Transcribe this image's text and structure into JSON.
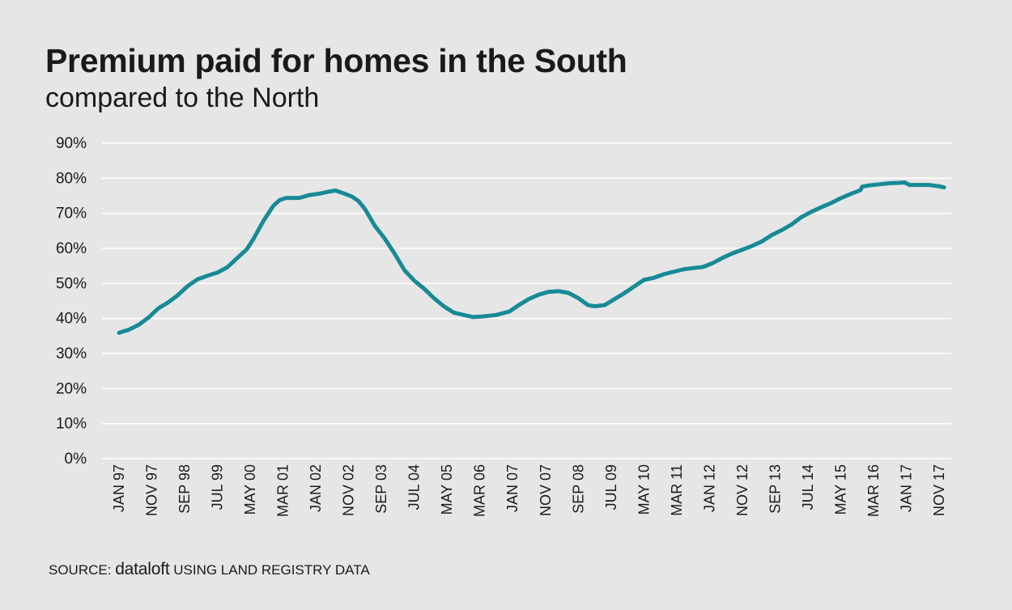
{
  "header": {
    "title": "Premium paid for homes in the South",
    "subtitle": "compared to the North"
  },
  "source": {
    "prefix": "SOURCE:",
    "brand": "dataloft",
    "suffix": "USING LAND REGISTRY DATA"
  },
  "colors": {
    "line": "#178a96",
    "grid": "#ffffff",
    "background": "#e6e6e6",
    "text": "#1a1a1a"
  },
  "chart_data": {
    "type": "line",
    "title": "Premium paid for homes in the South",
    "subtitle": "compared to the North",
    "xlabel": "",
    "ylabel": "",
    "ylim": [
      0,
      90
    ],
    "y_ticks": [
      0,
      10,
      20,
      30,
      40,
      50,
      60,
      70,
      80,
      90
    ],
    "y_tick_labels": [
      "0%",
      "10%",
      "20%",
      "30%",
      "40%",
      "50%",
      "60%",
      "70%",
      "80%",
      "90%"
    ],
    "grid": true,
    "legend": "none",
    "x_tick_labels": [
      "JAN 97",
      "NOV 97",
      "SEP 98",
      "JUL 99",
      "MAY 00",
      "MAR 01",
      "JAN 02",
      "NOV 02",
      "SEP 03",
      "JUL 04",
      "MAY 05",
      "MAR 06",
      "JAN 07",
      "NOV 07",
      "SEP 08",
      "JUL 09",
      "MAY 10",
      "MAR 11",
      "JAN 12",
      "NOV 12",
      "SEP 13",
      "JUL 14",
      "MAY 15",
      "MAR 16",
      "JAN 17",
      "NOV 17"
    ],
    "series": [
      {
        "values": [
          [
            1997.0,
            35.9
          ],
          [
            1997.3,
            36.8
          ],
          [
            1997.6,
            38.2
          ],
          [
            1997.9,
            40.3
          ],
          [
            1998.2,
            42.9
          ],
          [
            1998.5,
            44.6
          ],
          [
            1998.8,
            46.7
          ],
          [
            1999.1,
            49.3
          ],
          [
            1999.4,
            51.2
          ],
          [
            1999.7,
            52.2
          ],
          [
            2000.0,
            53.1
          ],
          [
            2000.3,
            54.6
          ],
          [
            2000.6,
            57.2
          ],
          [
            2000.9,
            59.8
          ],
          [
            2001.1,
            62.7
          ],
          [
            2001.4,
            67.8
          ],
          [
            2001.7,
            72.1
          ],
          [
            2001.9,
            73.8
          ],
          [
            2002.1,
            74.4
          ],
          [
            2002.5,
            74.4
          ],
          [
            2002.8,
            75.2
          ],
          [
            2003.1,
            75.6
          ],
          [
            2003.4,
            76.2
          ],
          [
            2003.6,
            76.5
          ],
          [
            2003.9,
            75.5
          ],
          [
            2004.1,
            74.8
          ],
          [
            2004.3,
            73.5
          ],
          [
            2004.5,
            71.2
          ],
          [
            2004.8,
            66.4
          ],
          [
            2005.1,
            62.8
          ],
          [
            2005.4,
            58.5
          ],
          [
            2005.7,
            53.8
          ],
          [
            2006.0,
            50.8
          ],
          [
            2006.3,
            48.5
          ],
          [
            2006.6,
            45.8
          ],
          [
            2006.9,
            43.5
          ],
          [
            2007.2,
            41.7
          ],
          [
            2007.5,
            41.0
          ],
          [
            2007.8,
            40.4
          ],
          [
            2008.1,
            40.6
          ],
          [
            2008.5,
            41.0
          ],
          [
            2008.9,
            42.0
          ],
          [
            2009.2,
            43.9
          ],
          [
            2009.5,
            45.6
          ],
          [
            2009.8,
            46.8
          ],
          [
            2010.1,
            47.6
          ],
          [
            2010.4,
            47.8
          ],
          [
            2010.7,
            47.3
          ],
          [
            2011.0,
            45.8
          ],
          [
            2011.3,
            43.8
          ],
          [
            2011.5,
            43.5
          ],
          [
            2011.8,
            43.8
          ],
          [
            2012.1,
            45.5
          ],
          [
            2012.4,
            47.2
          ],
          [
            2012.7,
            49.1
          ],
          [
            2013.0,
            51.0
          ],
          [
            2013.3,
            51.6
          ],
          [
            2013.6,
            52.6
          ],
          [
            2013.9,
            53.3
          ],
          [
            2014.2,
            54.0
          ],
          [
            2014.5,
            54.4
          ],
          [
            2014.8,
            54.7
          ],
          [
            2015.1,
            55.8
          ],
          [
            2015.4,
            57.3
          ],
          [
            2015.7,
            58.6
          ],
          [
            2016.0,
            59.6
          ],
          [
            2016.3,
            60.7
          ],
          [
            2016.6,
            62.0
          ],
          [
            2016.9,
            63.8
          ],
          [
            2017.2,
            65.2
          ],
          [
            2017.5,
            66.8
          ],
          [
            2017.8,
            68.9
          ],
          [
            2018.1,
            70.4
          ],
          [
            2018.4,
            71.7
          ],
          [
            2018.7,
            72.9
          ],
          [
            2019.0,
            74.3
          ],
          [
            2019.3,
            75.5
          ],
          [
            2019.6,
            76.6
          ],
          [
            2019.65,
            77.6
          ],
          [
            2019.9,
            78.0
          ],
          [
            2020.2,
            78.3
          ],
          [
            2020.5,
            78.6
          ],
          [
            2020.8,
            78.7
          ],
          [
            2020.95,
            78.8
          ],
          [
            2021.1,
            78.1
          ],
          [
            2021.4,
            78.1
          ],
          [
            2021.7,
            78.1
          ],
          [
            2022.0,
            77.7
          ],
          [
            2022.15,
            77.4
          ]
        ]
      }
    ]
  }
}
